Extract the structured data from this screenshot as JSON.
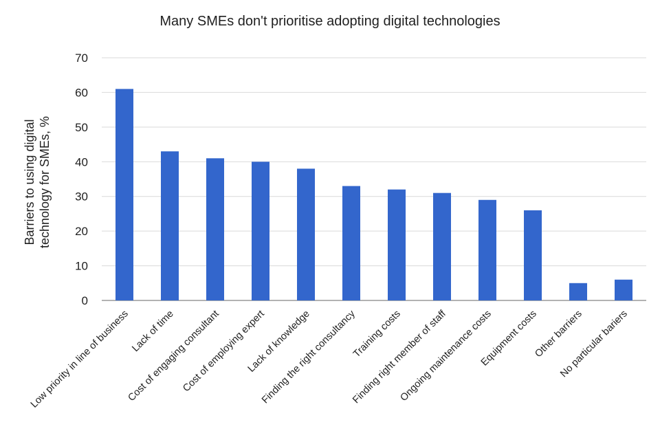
{
  "chart_data": {
    "type": "bar",
    "title": "Many SMEs don't prioritise adopting digital technologies",
    "xlabel": "",
    "ylabel_lines": [
      "Barriers to using digital",
      "technology for SMEs, %"
    ],
    "ylim": [
      0,
      70
    ],
    "yticks": [
      0,
      10,
      20,
      30,
      40,
      50,
      60,
      70
    ],
    "grid": true,
    "legend": "none",
    "bar_color": "#3366cc",
    "categories": [
      "Low priority in line of business",
      "Lack of time",
      "Cost of engaging consultant",
      "Cost of employing expert",
      "Lack of knowledge",
      "Finding the right consultancy",
      "Training costs",
      "Finding right member of staff",
      "Ongoing maintenance costs",
      "Equipment costs",
      "Other barriers",
      "No particular bariers"
    ],
    "values": [
      61,
      43,
      41,
      40,
      38,
      33,
      32,
      31,
      29,
      26,
      5,
      6
    ]
  }
}
